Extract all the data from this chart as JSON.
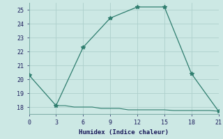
{
  "xlabel": "Humidex (Indice chaleur)",
  "x_main": [
    0,
    3,
    6,
    9,
    12,
    15,
    18,
    21
  ],
  "y_main": [
    20.3,
    18.1,
    22.3,
    24.4,
    25.2,
    25.2,
    20.4,
    17.7
  ],
  "x_flat": [
    3,
    4,
    5,
    6,
    7,
    8,
    9,
    10,
    11,
    12,
    13,
    14,
    15,
    16,
    17,
    18,
    19,
    20,
    21
  ],
  "y_flat": [
    18.1,
    18.1,
    18.0,
    18.0,
    18.0,
    17.9,
    17.9,
    17.9,
    17.8,
    17.8,
    17.8,
    17.8,
    17.8,
    17.75,
    17.75,
    17.75,
    17.75,
    17.75,
    17.7
  ],
  "line_color": "#2e7d6e",
  "bg_color": "#cce8e4",
  "grid_color": "#aed0cc",
  "xlim": [
    0,
    21
  ],
  "ylim": [
    17.5,
    25.5
  ],
  "xticks": [
    0,
    3,
    6,
    9,
    12,
    15,
    18,
    21
  ],
  "yticks": [
    18,
    19,
    20,
    21,
    22,
    23,
    24,
    25
  ]
}
